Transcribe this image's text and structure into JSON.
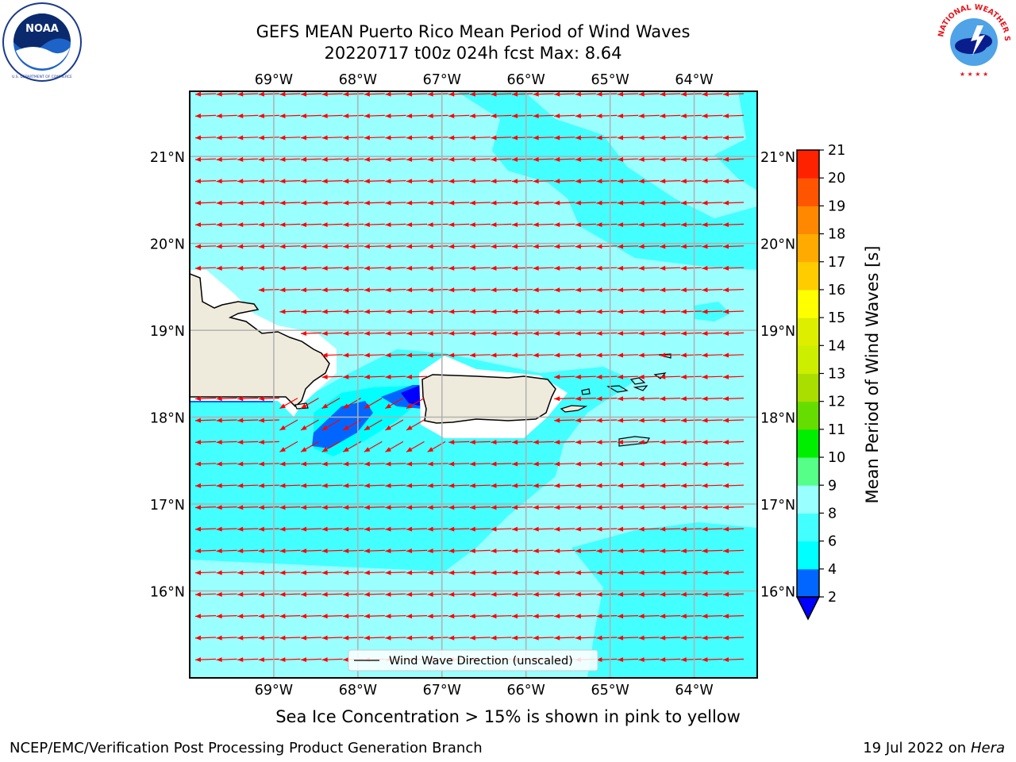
{
  "header": {
    "title_line1": "GEFS MEAN Puerto Rico Mean Period of Wind Waves",
    "title_line2": "20220717 t00z 024h fcst   Max: 8.64"
  },
  "logos": {
    "left": {
      "name": "NOAA",
      "text": "NOAA",
      "ring_text": "NATIONAL OCEANIC AND ATMOSPHERIC ADMINISTRATION · U.S. DEPARTMENT OF COMMERCE"
    },
    "right": {
      "name": "National Weather Service",
      "ring_text": "NATIONAL WEATHER SERVICE"
    }
  },
  "map": {
    "lon_labels": [
      "69°W",
      "68°W",
      "67°W",
      "66°W",
      "65°W",
      "64°W"
    ],
    "lat_labels": [
      "21°N",
      "20°N",
      "19°N",
      "18°N",
      "17°N",
      "16°N"
    ],
    "lon_range": [
      -70.0,
      -63.25
    ],
    "lat_range": [
      15.0,
      21.75
    ],
    "legend_label": "Wind Wave Direction (unscaled)",
    "arrow_color": "#ff0000",
    "land_color": "#efebdc"
  },
  "colorbar": {
    "label": "Mean Period of Wind Waves [s]",
    "tick_labels": [
      "2",
      "4",
      "6",
      "8",
      "9",
      "10",
      "11",
      "12",
      "13",
      "14",
      "15",
      "16",
      "17",
      "18",
      "19",
      "20",
      "21"
    ],
    "bin_colors": [
      "#0066ff",
      "#00ffff",
      "#44ffff",
      "#99ffff",
      "#55ff88",
      "#00ee00",
      "#66dd00",
      "#aadd00",
      "#ccee00",
      "#ddee00",
      "#ffff00",
      "#ffcc00",
      "#ffaa00",
      "#ff8800",
      "#ff5500",
      "#ff2200"
    ],
    "under_color": "#0000ff"
  },
  "footer": {
    "sea_ice_note": "Sea Ice Concentration > 15% is shown in pink to yellow",
    "branch": "NCEP/EMC/Verification Post Processing Product Generation Branch",
    "date": "19 Jul 2022 on ",
    "machine": "Hera"
  }
}
